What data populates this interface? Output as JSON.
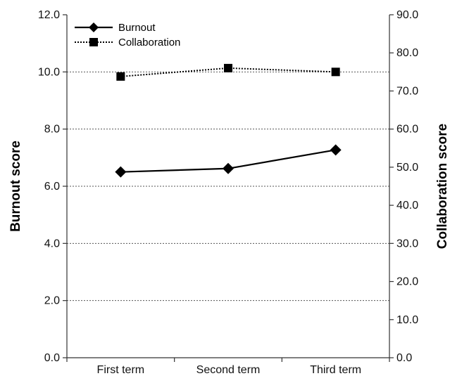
{
  "chart_data": {
    "type": "line",
    "title": "",
    "categories": [
      "First term",
      "Second term",
      "Third term"
    ],
    "y_left": {
      "label": "Burnout score",
      "range": [
        0,
        12
      ],
      "ticks": [
        "0.0",
        "2.0",
        "4.0",
        "6.0",
        "8.0",
        "10.0",
        "12.0"
      ]
    },
    "y_right": {
      "label": "Collaboration score",
      "range": [
        0,
        90
      ],
      "ticks": [
        "0.0",
        "10.0",
        "20.0",
        "30.0",
        "40.0",
        "50.0",
        "60.0",
        "70.0",
        "80.0",
        "90.0"
      ]
    },
    "grid": "horizontal dotted at left-axis ticks",
    "legend_position": "top-left",
    "series": [
      {
        "name": "Burnout",
        "axis": "left",
        "marker": "diamond",
        "line_style": "solid",
        "color": "#000000",
        "values": [
          6.5,
          6.62,
          7.27
        ]
      },
      {
        "name": "Collaboration",
        "axis": "right",
        "marker": "square",
        "line_style": "dotted",
        "color": "#000000",
        "values": [
          73.8,
          76.0,
          75.0
        ]
      }
    ]
  }
}
